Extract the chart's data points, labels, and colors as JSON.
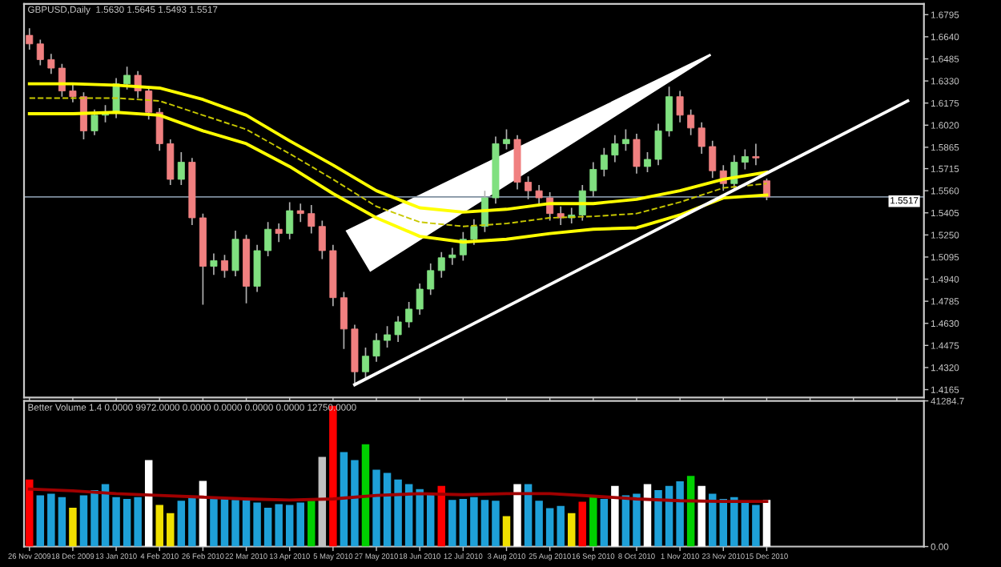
{
  "chart_data": [
    {
      "type": "candlestick",
      "title": "GBPUSD,Daily  1.5630 1.5645 1.5493 1.5517",
      "tick_labels": "y",
      "grid": false,
      "categories": [
        null,
        null,
        null,
        null,
        null,
        null,
        null,
        null,
        null,
        null,
        null,
        null,
        null,
        null,
        null,
        null,
        null,
        null,
        null,
        null,
        null,
        null,
        null,
        null,
        null,
        null,
        null,
        null,
        null,
        null,
        null,
        null,
        null,
        null,
        null,
        null,
        null,
        null,
        null,
        null,
        null,
        null,
        null,
        null,
        null,
        null,
        null,
        null,
        null,
        null,
        null,
        null,
        null,
        null,
        null,
        null,
        null,
        null,
        null,
        null,
        null,
        null,
        null,
        null,
        null,
        null,
        null,
        null,
        null,
        null,
        null,
        null,
        null,
        null,
        null,
        null,
        null,
        null,
        null,
        null,
        null,
        null,
        null
      ],
      "ohlc": [
        [
          1.665,
          1.67,
          1.655,
          1.659
        ],
        [
          1.659,
          1.662,
          1.644,
          1.648
        ],
        [
          1.648,
          1.652,
          1.638,
          1.642
        ],
        [
          1.642,
          1.645,
          1.622,
          1.626
        ],
        [
          1.626,
          1.631,
          1.618,
          1.622
        ],
        [
          1.622,
          1.625,
          1.592,
          1.598
        ],
        [
          1.598,
          1.613,
          1.595,
          1.609
        ],
        [
          1.609,
          1.616,
          1.604,
          1.611
        ],
        [
          1.611,
          1.635,
          1.607,
          1.631
        ],
        [
          1.631,
          1.643,
          1.627,
          1.637
        ],
        [
          1.637,
          1.64,
          1.621,
          1.626
        ],
        [
          1.626,
          1.629,
          1.606,
          1.611
        ],
        [
          1.611,
          1.614,
          1.584,
          1.589
        ],
        [
          1.589,
          1.592,
          1.56,
          1.564
        ],
        [
          1.564,
          1.583,
          1.56,
          1.576
        ],
        [
          1.576,
          1.579,
          1.532,
          1.537
        ],
        [
          1.537,
          1.54,
          1.476,
          1.503
        ],
        [
          1.503,
          1.512,
          1.497,
          1.507
        ],
        [
          1.507,
          1.511,
          1.495,
          1.5
        ],
        [
          1.5,
          1.528,
          1.496,
          1.522
        ],
        [
          1.522,
          1.525,
          1.477,
          1.489
        ],
        [
          1.489,
          1.518,
          1.485,
          1.514
        ],
        [
          1.514,
          1.534,
          1.51,
          1.529
        ],
        [
          1.529,
          1.533,
          1.52,
          1.526
        ],
        [
          1.526,
          1.548,
          1.522,
          1.542
        ],
        [
          1.542,
          1.547,
          1.534,
          1.54
        ],
        [
          1.54,
          1.546,
          1.526,
          1.531
        ],
        [
          1.531,
          1.535,
          1.508,
          1.514
        ],
        [
          1.514,
          1.518,
          1.475,
          1.481
        ],
        [
          1.481,
          1.485,
          1.445,
          1.459
        ],
        [
          1.459,
          1.462,
          1.421,
          1.429
        ],
        [
          1.429,
          1.446,
          1.424,
          1.44
        ],
        [
          1.44,
          1.456,
          1.436,
          1.451
        ],
        [
          1.451,
          1.461,
          1.446,
          1.455
        ],
        [
          1.455,
          1.468,
          1.45,
          1.464
        ],
        [
          1.464,
          1.478,
          1.46,
          1.473
        ],
        [
          1.473,
          1.491,
          1.469,
          1.487
        ],
        [
          1.487,
          1.505,
          1.483,
          1.5
        ],
        [
          1.5,
          1.513,
          1.495,
          1.509
        ],
        [
          1.509,
          1.516,
          1.504,
          1.511
        ],
        [
          1.511,
          1.527,
          1.507,
          1.522
        ],
        [
          1.522,
          1.536,
          1.518,
          1.531
        ],
        [
          1.531,
          1.556,
          1.527,
          1.551
        ],
        [
          1.551,
          1.594,
          1.547,
          1.589
        ],
        [
          1.589,
          1.599,
          1.585,
          1.592
        ],
        [
          1.592,
          1.595,
          1.557,
          1.562
        ],
        [
          1.562,
          1.566,
          1.55,
          1.556
        ],
        [
          1.556,
          1.56,
          1.546,
          1.551
        ],
        [
          1.551,
          1.555,
          1.535,
          1.54
        ],
        [
          1.54,
          1.545,
          1.532,
          1.537
        ],
        [
          1.537,
          1.544,
          1.533,
          1.539
        ],
        [
          1.539,
          1.56,
          1.535,
          1.556
        ],
        [
          1.556,
          1.576,
          1.552,
          1.571
        ],
        [
          1.571,
          1.586,
          1.566,
          1.581
        ],
        [
          1.581,
          1.595,
          1.576,
          1.589
        ],
        [
          1.589,
          1.599,
          1.584,
          1.592
        ],
        [
          1.592,
          1.596,
          1.568,
          1.573
        ],
        [
          1.573,
          1.583,
          1.569,
          1.578
        ],
        [
          1.578,
          1.603,
          1.574,
          1.598
        ],
        [
          1.598,
          1.629,
          1.594,
          1.622
        ],
        [
          1.622,
          1.626,
          1.604,
          1.609
        ],
        [
          1.609,
          1.613,
          1.595,
          1.6
        ],
        [
          1.6,
          1.604,
          1.582,
          1.587
        ],
        [
          1.587,
          1.591,
          1.565,
          1.57
        ],
        [
          1.57,
          1.574,
          1.556,
          1.561
        ],
        [
          1.561,
          1.581,
          1.557,
          1.576
        ],
        [
          1.576,
          1.585,
          1.571,
          1.58
        ],
        [
          1.58,
          1.589,
          1.574,
          1.579
        ],
        [
          1.563,
          1.5645,
          1.5493,
          1.5517
        ],
        null,
        null,
        null,
        null,
        null,
        null,
        null,
        null,
        null,
        null,
        null,
        null,
        null,
        null
      ],
      "series": [
        {
          "type": "line",
          "color": "#ffff00",
          "line_style": "solid",
          "values": [
            1.631,
            null,
            null,
            null,
            1.631,
            null,
            null,
            null,
            1.63,
            null,
            null,
            null,
            1.628,
            null,
            null,
            null,
            1.62,
            null,
            null,
            null,
            1.609,
            null,
            null,
            null,
            1.591,
            null,
            null,
            null,
            1.574,
            null,
            null,
            null,
            1.556,
            null,
            null,
            null,
            1.544,
            null,
            null,
            null,
            1.541,
            null,
            null,
            null,
            1.543,
            null,
            null,
            null,
            1.547,
            null,
            null,
            null,
            1.547,
            null,
            null,
            null,
            1.55,
            null,
            null,
            null,
            1.556,
            null,
            null,
            null,
            1.564,
            null,
            null,
            null,
            1.569,
            null,
            null,
            null,
            null,
            null,
            null,
            null,
            null,
            null,
            null,
            null,
            null,
            null,
            null
          ]
        },
        {
          "type": "line",
          "color": "#c8c800",
          "line_style": "dashed",
          "values": [
            1.621,
            null,
            null,
            null,
            1.621,
            null,
            null,
            null,
            1.621,
            null,
            null,
            null,
            1.619,
            null,
            null,
            null,
            1.609,
            null,
            null,
            null,
            1.599,
            null,
            null,
            null,
            1.582,
            null,
            null,
            null,
            1.564,
            null,
            null,
            null,
            1.545,
            null,
            null,
            null,
            1.534,
            null,
            null,
            null,
            1.531,
            null,
            null,
            null,
            1.533,
            null,
            null,
            null,
            1.537,
            null,
            null,
            null,
            1.538,
            null,
            null,
            null,
            1.54,
            null,
            null,
            null,
            1.548,
            null,
            null,
            null,
            1.558,
            null,
            null,
            null,
            1.561,
            null,
            null,
            null,
            null,
            null,
            null,
            null,
            null,
            null,
            null,
            null,
            null,
            null,
            null
          ]
        },
        {
          "type": "line",
          "color": "#ffff00",
          "line_style": "solid",
          "values": [
            1.61,
            null,
            null,
            null,
            1.61,
            null,
            null,
            null,
            1.611,
            null,
            null,
            null,
            1.609,
            null,
            null,
            null,
            1.598,
            null,
            null,
            null,
            1.589,
            null,
            null,
            null,
            1.573,
            null,
            null,
            null,
            1.554,
            null,
            null,
            null,
            1.537,
            null,
            null,
            null,
            1.524,
            null,
            null,
            null,
            1.52,
            null,
            null,
            null,
            1.522,
            null,
            null,
            null,
            1.526,
            null,
            null,
            null,
            1.529,
            null,
            null,
            null,
            1.53,
            null,
            null,
            null,
            1.539,
            null,
            null,
            null,
            1.551,
            null,
            null,
            null,
            1.553,
            null,
            null,
            null,
            null,
            null,
            null,
            null,
            null,
            null,
            null,
            null,
            null,
            null,
            null
          ]
        },
        {
          "type": "line",
          "color": "#ffffff",
          "line_style": "solid",
          "values": [
            null,
            null,
            null,
            null,
            null,
            null,
            null,
            null,
            null,
            null,
            null,
            null,
            null,
            null,
            null,
            null,
            null,
            null,
            null,
            null,
            null,
            null,
            null,
            null,
            null,
            null,
            null,
            null,
            null,
            null,
            1.42,
            null,
            null,
            null,
            null,
            null,
            null,
            null,
            null,
            null,
            null,
            null,
            null,
            null,
            null,
            null,
            null,
            null,
            null,
            null,
            null,
            null,
            null,
            null,
            null,
            null,
            null,
            null,
            null,
            null,
            null,
            null,
            null,
            null,
            null,
            null,
            null,
            null,
            null,
            null,
            null,
            null,
            null,
            null,
            null,
            null,
            null,
            null,
            null,
            null,
            null,
            1.619,
            null
          ]
        }
      ],
      "ylim": [
        1.411,
        1.687
      ],
      "yticks": [
        {
          "value": 1.6795,
          "label": "1.6795"
        },
        {
          "value": 1.664,
          "label": "1.6640"
        },
        {
          "value": 1.6485,
          "label": "1.6485"
        },
        {
          "value": 1.633,
          "label": "1.6330"
        },
        {
          "value": 1.6175,
          "label": "1.6175"
        },
        {
          "value": 1.602,
          "label": "1.6020"
        },
        {
          "value": 1.5865,
          "label": "1.5865"
        },
        {
          "value": 1.5715,
          "label": "1.5715"
        },
        {
          "value": 1.556,
          "label": "1.5560"
        },
        {
          "value": 1.5405,
          "label": "1.5405"
        },
        {
          "value": 1.525,
          "label": "1.5250"
        },
        {
          "value": 1.5095,
          "label": "1.5095"
        },
        {
          "value": 1.494,
          "label": "1.4940"
        },
        {
          "value": 1.4785,
          "label": "1.4785"
        },
        {
          "value": 1.463,
          "label": "1.4630"
        },
        {
          "value": 1.4475,
          "label": "1.4475"
        },
        {
          "value": 1.432,
          "label": "1.4320"
        },
        {
          "value": 1.4165,
          "label": "1.4165"
        }
      ],
      "ref_lines": [
        {
          "axis": "y",
          "value": 1.5517,
          "label": "1.5517",
          "color": "#8090a0"
        }
      ]
    },
    {
      "type": "bar",
      "subtitle": "Better Volume 1.4 0.0000 9972.0000 0.0000 0.0000 0.0000 0.0000 12750.0000",
      "grid": false,
      "categories": [
        "26 Nov 2009",
        null,
        null,
        null,
        "18 Dec 2009",
        null,
        null,
        null,
        "13 Jan 2010",
        null,
        null,
        null,
        "4 Feb 2010",
        null,
        null,
        null,
        "26 Feb 2010",
        null,
        null,
        null,
        "22 Mar 2010",
        null,
        null,
        null,
        "13 Apr 2010",
        null,
        null,
        null,
        "5 May 2010",
        null,
        null,
        null,
        "27 May 2010",
        null,
        null,
        null,
        "18 Jun 2010",
        null,
        null,
        null,
        "12 Jul 2010",
        null,
        null,
        null,
        "3 Aug 2010",
        null,
        null,
        null,
        "25 Aug 2010",
        null,
        null,
        null,
        "16 Sep 2010",
        null,
        null,
        null,
        "8 Oct 2010",
        null,
        null,
        null,
        "1 Nov 2010",
        null,
        null,
        null,
        "23 Nov 2010",
        null,
        null,
        null,
        "15 Dec 2010",
        null,
        null,
        null,
        null,
        null,
        null,
        null,
        null,
        null,
        null,
        null,
        null,
        null,
        null
      ],
      "values": [
        19000,
        14500,
        15000,
        14000,
        11000,
        14500,
        16000,
        17700,
        14000,
        13500,
        14000,
        24500,
        11800,
        9500,
        13000,
        14000,
        18600,
        14000,
        13500,
        13200,
        13200,
        12500,
        11000,
        12000,
        11800,
        12500,
        13000,
        25400,
        39900,
        26800,
        24500,
        29000,
        21800,
        20900,
        19000,
        17700,
        16300,
        15000,
        17200,
        13200,
        13500,
        14000,
        13200,
        13000,
        8600,
        17700,
        17700,
        13000,
        10900,
        11500,
        9500,
        12700,
        14000,
        13500,
        17200,
        14500,
        15000,
        17700,
        16000,
        17200,
        18500,
        20000,
        17200,
        15000,
        13500,
        14000,
        13000,
        11800,
        13200,
        null,
        null,
        null,
        null,
        null,
        null,
        null,
        null,
        null,
        null,
        null,
        null,
        null,
        null
      ],
      "colors": [
        "#ff0000",
        "#1ea0d8",
        "#1ea0d8",
        "#1ea0d8",
        "#f0e000",
        "#1ea0d8",
        "#1ea0d8",
        "#1ea0d8",
        "#1ea0d8",
        "#1ea0d8",
        "#1ea0d8",
        "#ffffff",
        "#f0e000",
        "#f0e000",
        "#1ea0d8",
        "#1ea0d8",
        "#ffffff",
        "#1ea0d8",
        "#1ea0d8",
        "#1ea0d8",
        "#1ea0d8",
        "#1ea0d8",
        "#1ea0d8",
        "#1ea0d8",
        "#1ea0d8",
        "#1ea0d8",
        "#00d000",
        "#c0c0c0",
        "#ff0000",
        "#1ea0d8",
        "#1ea0d8",
        "#00d000",
        "#1ea0d8",
        "#1ea0d8",
        "#1ea0d8",
        "#1ea0d8",
        "#1ea0d8",
        "#1ea0d8",
        "#ff0000",
        "#1ea0d8",
        "#1ea0d8",
        "#1ea0d8",
        "#1ea0d8",
        "#1ea0d8",
        "#f0e000",
        "#ffffff",
        "#1ea0d8",
        "#1ea0d8",
        "#1ea0d8",
        "#1ea0d8",
        "#f0e000",
        "#ff0000",
        "#00d000",
        "#1ea0d8",
        "#ffffff",
        "#1ea0d8",
        "#1ea0d8",
        "#ffffff",
        "#1ea0d8",
        "#1ea0d8",
        "#1ea0d8",
        "#00d000",
        "#ffffff",
        "#1ea0d8",
        "#1ea0d8",
        "#1ea0d8",
        "#1ea0d8",
        "#1ea0d8",
        "#ffffff",
        "#1ea0d8",
        "#1ea0d8",
        "#1ea0d8",
        "#1ea0d8",
        "#1ea0d8",
        "#1ea0d8",
        "#1ea0d8",
        "#1ea0d8",
        "#1ea0d8",
        "#1ea0d8",
        "#1ea0d8",
        "#1ea0d8",
        "#1ea0d8",
        "#1ea0d8"
      ],
      "series": [
        {
          "type": "line",
          "color": "#a00000",
          "line_style": "solid",
          "values": [
            16300,
            null,
            null,
            null,
            15800,
            null,
            null,
            null,
            15000,
            null,
            null,
            null,
            14500,
            null,
            null,
            null,
            14000,
            null,
            null,
            null,
            13500,
            null,
            null,
            null,
            13200,
            null,
            null,
            null,
            13500,
            null,
            null,
            null,
            14500,
            null,
            null,
            null,
            15000,
            null,
            null,
            null,
            14700,
            null,
            null,
            null,
            15000,
            null,
            null,
            null,
            15000,
            null,
            null,
            null,
            14300,
            null,
            null,
            null,
            13500,
            null,
            null,
            null,
            13000,
            null,
            null,
            null,
            12800,
            null,
            null,
            null,
            12800,
            null,
            null,
            null,
            null,
            null,
            null,
            null,
            null,
            null,
            null,
            null,
            null,
            null,
            null
          ]
        }
      ],
      "ylim": [
        0,
        41284.7
      ],
      "yticks": [
        {
          "value": 41284.7,
          "label": "41284.7"
        },
        {
          "value": 0,
          "label": "0.00"
        }
      ]
    }
  ]
}
